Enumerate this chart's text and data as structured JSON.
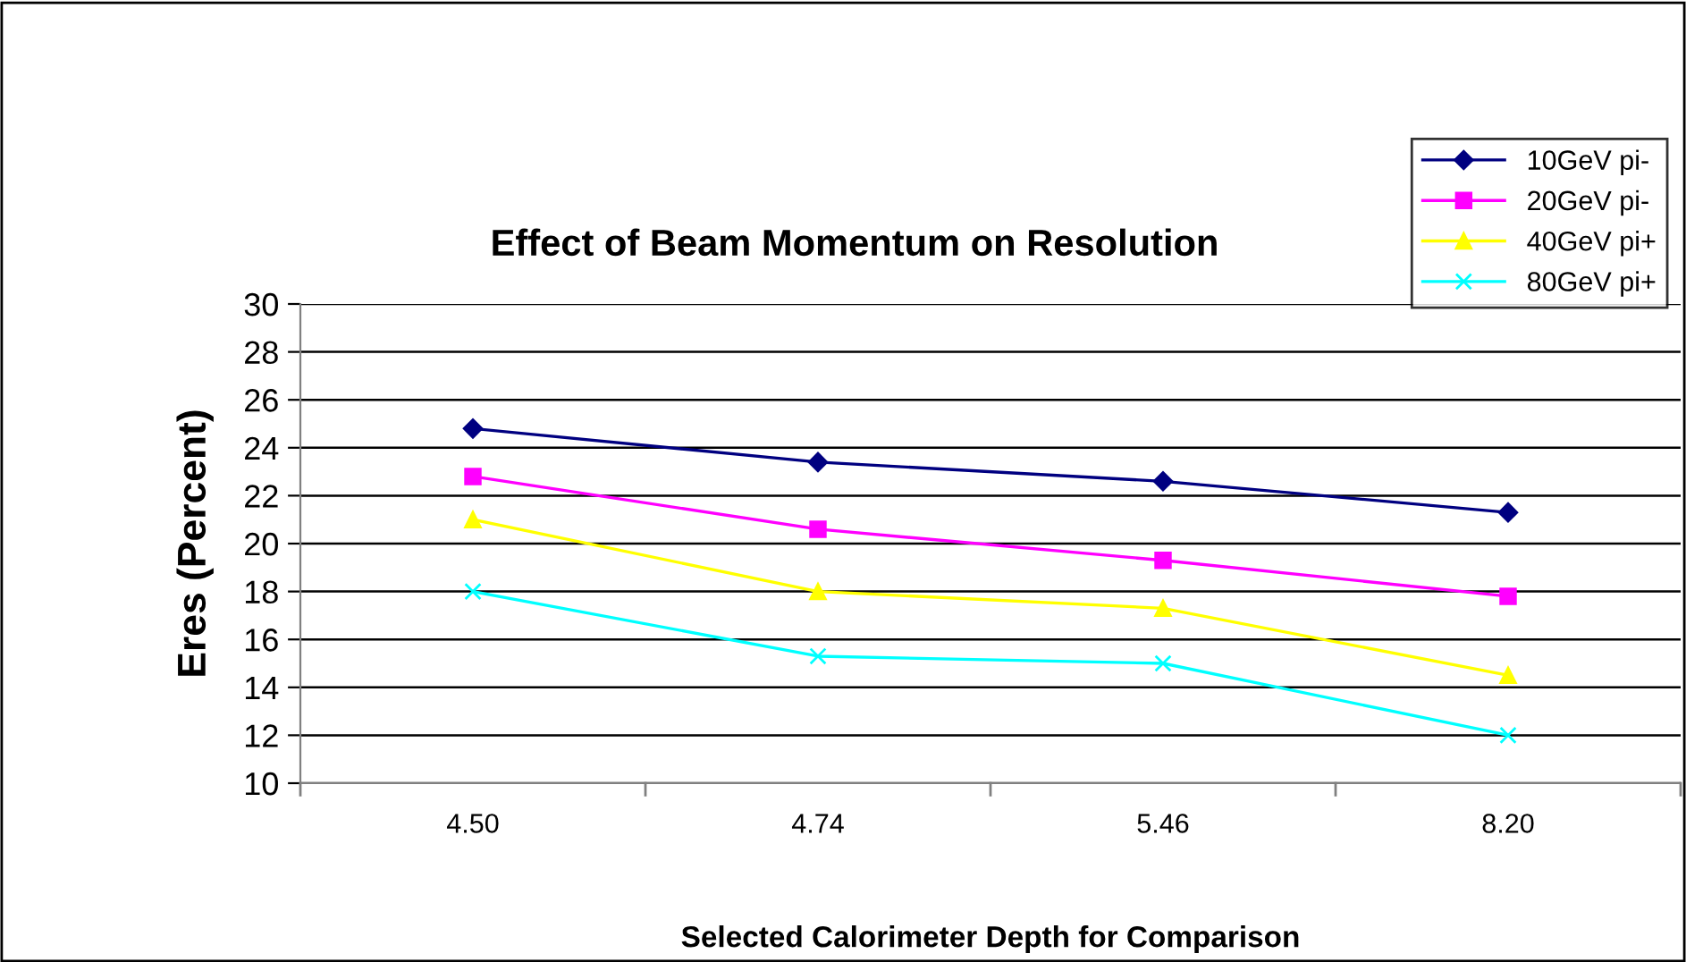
{
  "chart_data": {
    "type": "line",
    "title": "Effect of Beam Momentum on Resolution",
    "xlabel": "Selected Calorimeter Depth for Comparison",
    "ylabel": "Eres (Percent)",
    "categories": [
      "4.50",
      "4.74",
      "5.46",
      "8.20"
    ],
    "series": [
      {
        "name": "10GeV pi-",
        "color": "#000080",
        "marker": "diamond",
        "values": [
          24.8,
          23.4,
          22.6,
          21.3
        ]
      },
      {
        "name": "20GeV pi-",
        "color": "#ff00ff",
        "marker": "square",
        "values": [
          22.8,
          20.6,
          19.3,
          17.8
        ]
      },
      {
        "name": "40GeV pi+",
        "color": "#ffff00",
        "marker": "triangle",
        "values": [
          21.0,
          18.0,
          17.3,
          14.5
        ]
      },
      {
        "name": "80GeV pi+",
        "color": "#00ffff",
        "marker": "cross",
        "values": [
          18.0,
          15.3,
          15.0,
          12.0
        ]
      }
    ],
    "ylim": [
      10,
      30
    ],
    "yticks": [
      10,
      12,
      14,
      16,
      18,
      20,
      22,
      24,
      26,
      28,
      30
    ],
    "grid": "y",
    "legend": "top right"
  }
}
